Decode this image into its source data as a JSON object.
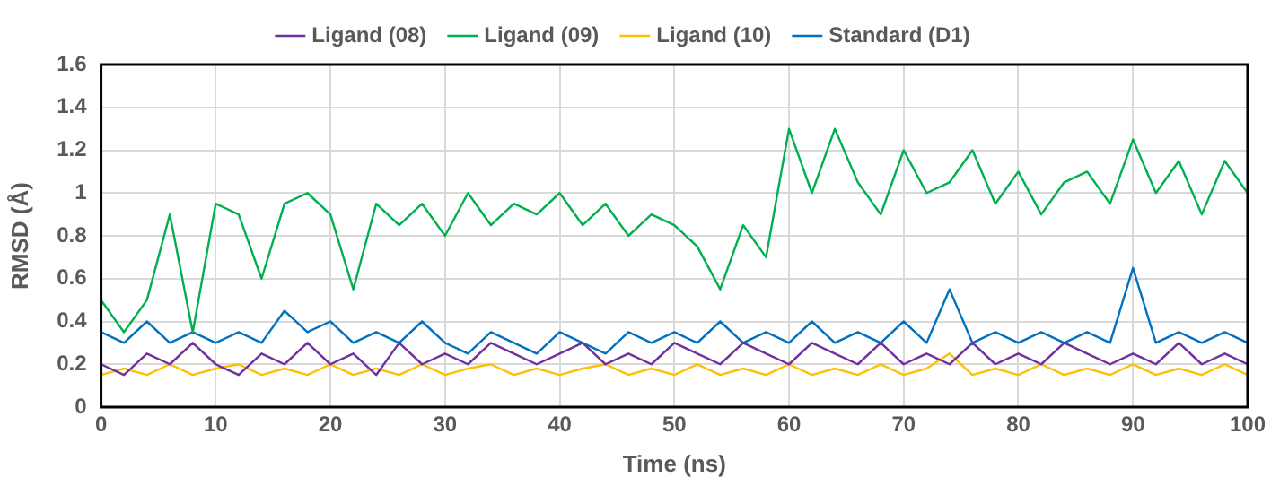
{
  "chart_data": {
    "type": "line",
    "xlabel": "Time (ns)",
    "ylabel": "RMSD (Å)",
    "x": [
      0,
      2,
      4,
      6,
      8,
      10,
      12,
      14,
      16,
      18,
      20,
      22,
      24,
      26,
      28,
      30,
      32,
      34,
      36,
      38,
      40,
      42,
      44,
      46,
      48,
      50,
      52,
      54,
      56,
      58,
      60,
      62,
      64,
      66,
      68,
      70,
      72,
      74,
      76,
      78,
      80,
      82,
      84,
      86,
      88,
      90,
      92,
      94,
      96,
      98,
      100
    ],
    "xlim": [
      0,
      100
    ],
    "xticks": [
      0,
      10,
      20,
      30,
      40,
      50,
      60,
      70,
      80,
      90,
      100
    ],
    "ylim": [
      0,
      1.6
    ],
    "yticks": [
      0,
      0.2,
      0.4,
      0.6,
      0.8,
      1,
      1.2,
      1.4,
      1.6
    ],
    "grid": true,
    "legend": "top",
    "marker": "none",
    "line_style": "solid",
    "series": [
      {
        "name": "Ligand (08)",
        "color": "#7030a0",
        "values": [
          0.2,
          0.15,
          0.25,
          0.2,
          0.3,
          0.2,
          0.15,
          0.25,
          0.2,
          0.3,
          0.2,
          0.25,
          0.15,
          0.3,
          0.2,
          0.25,
          0.2,
          0.3,
          0.25,
          0.2,
          0.25,
          0.3,
          0.2,
          0.25,
          0.2,
          0.3,
          0.25,
          0.2,
          0.3,
          0.25,
          0.2,
          0.3,
          0.25,
          0.2,
          0.3,
          0.2,
          0.25,
          0.2,
          0.3,
          0.2,
          0.25,
          0.2,
          0.3,
          0.25,
          0.2,
          0.25,
          0.2,
          0.3,
          0.2,
          0.25,
          0.2
        ]
      },
      {
        "name": "Ligand (09)",
        "color": "#00b050",
        "values": [
          0.5,
          0.35,
          0.5,
          0.9,
          0.35,
          0.95,
          0.9,
          0.6,
          0.95,
          1.0,
          0.9,
          0.55,
          0.95,
          0.85,
          0.95,
          0.8,
          1.0,
          0.85,
          0.95,
          0.9,
          1.0,
          0.85,
          0.95,
          0.8,
          0.9,
          0.85,
          0.75,
          0.55,
          0.85,
          0.7,
          1.3,
          1.0,
          1.3,
          1.05,
          0.9,
          1.2,
          1.0,
          1.05,
          1.2,
          0.95,
          1.1,
          0.9,
          1.05,
          1.1,
          0.95,
          1.25,
          1.0,
          1.15,
          0.9,
          1.15,
          1.0
        ]
      },
      {
        "name": "Ligand (10)",
        "color": "#ffc000",
        "values": [
          0.15,
          0.18,
          0.15,
          0.2,
          0.15,
          0.18,
          0.2,
          0.15,
          0.18,
          0.15,
          0.2,
          0.15,
          0.18,
          0.15,
          0.2,
          0.15,
          0.18,
          0.2,
          0.15,
          0.18,
          0.15,
          0.18,
          0.2,
          0.15,
          0.18,
          0.15,
          0.2,
          0.15,
          0.18,
          0.15,
          0.2,
          0.15,
          0.18,
          0.15,
          0.2,
          0.15,
          0.18,
          0.25,
          0.15,
          0.18,
          0.15,
          0.2,
          0.15,
          0.18,
          0.15,
          0.2,
          0.15,
          0.18,
          0.15,
          0.2,
          0.15
        ]
      },
      {
        "name": "Standard (D1)",
        "color": "#0070c0",
        "values": [
          0.35,
          0.3,
          0.4,
          0.3,
          0.35,
          0.3,
          0.35,
          0.3,
          0.45,
          0.35,
          0.4,
          0.3,
          0.35,
          0.3,
          0.4,
          0.3,
          0.25,
          0.35,
          0.3,
          0.25,
          0.35,
          0.3,
          0.25,
          0.35,
          0.3,
          0.35,
          0.3,
          0.4,
          0.3,
          0.35,
          0.3,
          0.4,
          0.3,
          0.35,
          0.3,
          0.4,
          0.3,
          0.55,
          0.3,
          0.35,
          0.3,
          0.35,
          0.3,
          0.35,
          0.3,
          0.65,
          0.3,
          0.35,
          0.3,
          0.35,
          0.3
        ]
      }
    ]
  }
}
